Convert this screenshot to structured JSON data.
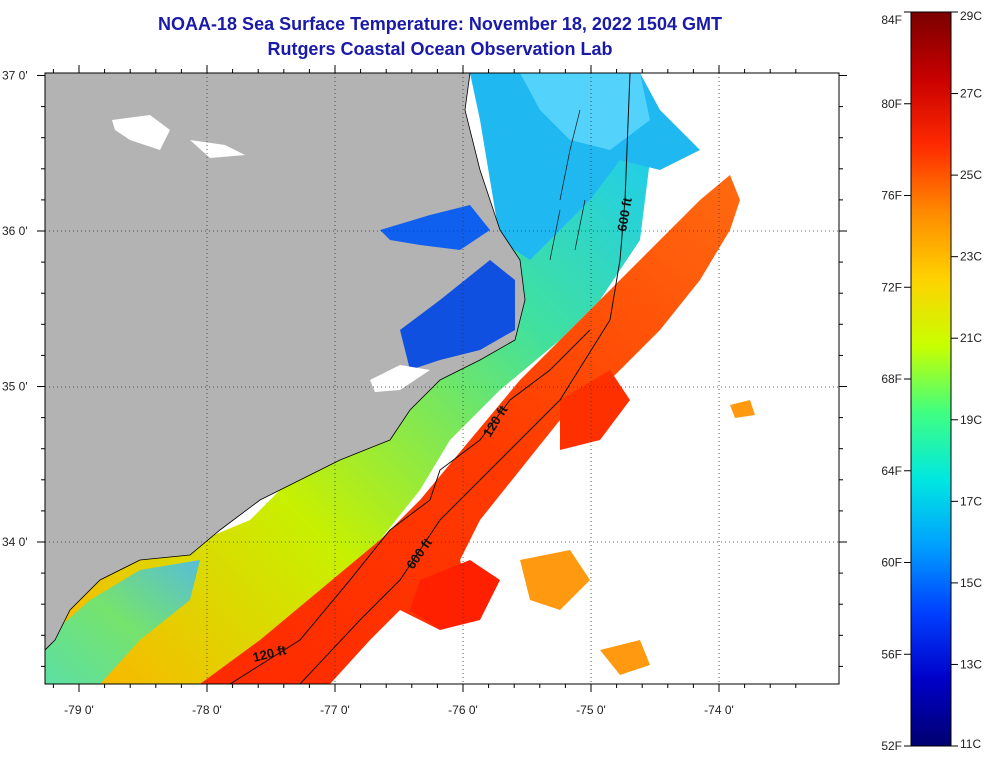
{
  "header": {
    "title_line_1": "NOAA-18 Sea Surface Temperature:  November 18, 2022 1504 GMT",
    "title_line_2": "Rutgers Coastal Ocean Observation Lab"
  },
  "map": {
    "longitude_ticks": [
      {
        "value": -79,
        "label": "-79 0'"
      },
      {
        "value": -78,
        "label": "-78 0'"
      },
      {
        "value": -77,
        "label": "-77 0'"
      },
      {
        "value": -76,
        "label": "-76 0'"
      },
      {
        "value": -75,
        "label": "-75 0'"
      },
      {
        "value": -74,
        "label": "-74 0'"
      }
    ],
    "latitude_ticks": [
      {
        "value": 37,
        "label": "37 0'"
      },
      {
        "value": 36,
        "label": "36 0'"
      },
      {
        "value": 35,
        "label": "35 0'"
      },
      {
        "value": 34,
        "label": "34 0'"
      }
    ],
    "contour_labels": [
      {
        "id": "c600-north",
        "text": "600 ft"
      },
      {
        "id": "c120-mid",
        "text": "120 ft"
      },
      {
        "id": "c600-south",
        "text": "600 ft"
      },
      {
        "id": "c120-south",
        "text": "120 ft"
      }
    ],
    "land_color": "#b3b3b3",
    "no_data_color": "#ffffff"
  },
  "colorbar": {
    "fahrenheit_labels": [
      "84F",
      "80F",
      "76F",
      "72F",
      "68F",
      "64F",
      "60F",
      "56F",
      "52F"
    ],
    "celsius_labels": [
      "29C",
      "27C",
      "25C",
      "23C",
      "21C",
      "19C",
      "17C",
      "15C",
      "13C",
      "11C"
    ],
    "colors_top_to_bottom": [
      "#7a0000",
      "#c80000",
      "#ff2a00",
      "#ff8a00",
      "#ffd200",
      "#c8ff00",
      "#40ff80",
      "#00e8e0",
      "#00a0ff",
      "#0040ff",
      "#0000c8",
      "#000070"
    ]
  }
}
